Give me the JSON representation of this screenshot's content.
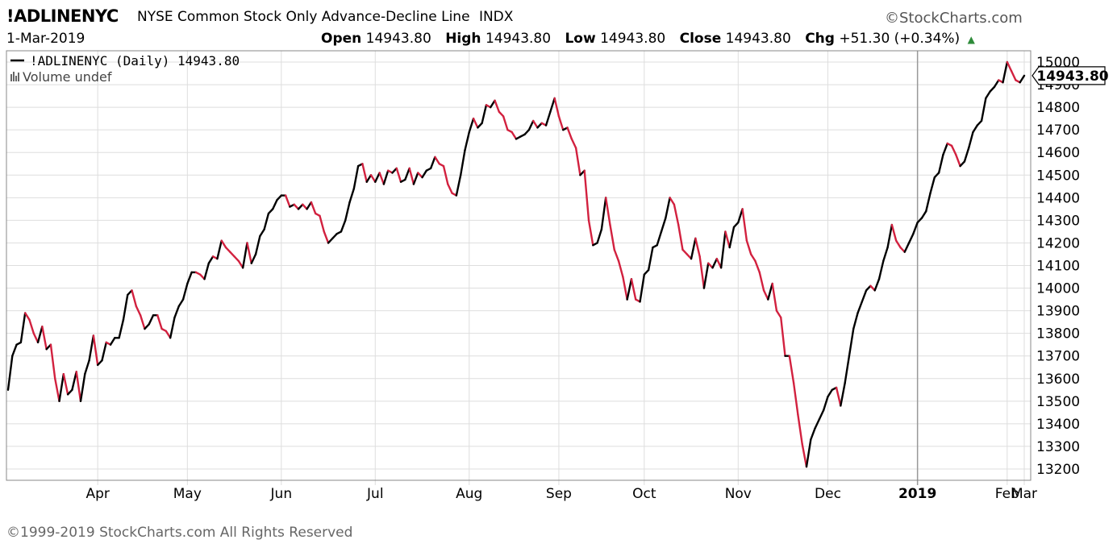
{
  "header": {
    "symbol": "!ADLINENYC",
    "description": "NYSE Common Stock Only Advance-Decline Line",
    "exchange": "INDX",
    "date": "1-Mar-2019",
    "brand": "©StockCharts.com",
    "open_label": "Open",
    "open": "14943.80",
    "high_label": "High",
    "high": "14943.80",
    "low_label": "Low",
    "low": "14943.80",
    "close_label": "Close",
    "close": "14943.80",
    "chg_label": "Chg",
    "chg": "+51.30 (+0.34%)"
  },
  "legend": {
    "series": "!ADLINENYC (Daily) 14943.80",
    "volume": "Volume undef"
  },
  "footer": {
    "copyright": "©1999-2019 StockCharts.com All Rights Reserved"
  },
  "colors": {
    "up": "#000000",
    "down": "#d2213f",
    "grid": "#dedede",
    "axis": "#888888"
  },
  "chart_data": {
    "type": "line",
    "title": "!ADLINENYC NYSE Common Stock Only Advance-Decline Line INDX",
    "ylim": [
      13150,
      15050
    ],
    "yticks": [
      13200,
      13300,
      13400,
      13500,
      13600,
      13700,
      13800,
      13900,
      14000,
      14100,
      14200,
      14300,
      14400,
      14500,
      14600,
      14700,
      14800,
      14900,
      15000
    ],
    "x_labels": [
      "Apr",
      "May",
      "Jun",
      "Jul",
      "Aug",
      "Sep",
      "Oct",
      "Nov",
      "Dec",
      "2019",
      "Feb",
      "Mar"
    ],
    "last_value_label": "14943.80",
    "series": [
      {
        "values": [
          13550,
          13700,
          13750,
          13760,
          13890,
          13860,
          13800,
          13760,
          13830,
          13730,
          13750,
          13600,
          13500,
          13620,
          13530,
          13550,
          13630,
          13500,
          13620,
          13680,
          13790,
          13660,
          13680,
          13760,
          13750,
          13780,
          13780,
          13860,
          13970,
          13990,
          13920,
          13880,
          13820,
          13840,
          13880,
          13880,
          13820,
          13810,
          13780,
          13870,
          13920,
          13950,
          14020,
          14070,
          14070,
          14060,
          14040,
          14110,
          14140,
          14130,
          14210,
          14180,
          14160,
          14140,
          14120,
          14090,
          14200,
          14110,
          14150,
          14230,
          14260,
          14330,
          14350,
          14390,
          14410,
          14410,
          14360,
          14370,
          14350,
          14370,
          14350,
          14380,
          14330,
          14320,
          14250,
          14200,
          14220,
          14240,
          14250,
          14300,
          14380,
          14440,
          14540,
          14550,
          14470,
          14500,
          14470,
          14510,
          14460,
          14520,
          14510,
          14530,
          14470,
          14480,
          14530,
          14460,
          14510,
          14490,
          14520,
          14530,
          14580,
          14550,
          14540,
          14460,
          14420,
          14410,
          14500,
          14610,
          14690,
          14750,
          14710,
          14730,
          14810,
          14800,
          14830,
          14780,
          14760,
          14700,
          14690,
          14660,
          14670,
          14680,
          14700,
          14740,
          14710,
          14730,
          14720,
          14780,
          14840,
          14760,
          14700,
          14710,
          14660,
          14620,
          14500,
          14520,
          14300,
          14190,
          14200,
          14260,
          14400,
          14280,
          14170,
          14120,
          14050,
          13950,
          14040,
          13950,
          13940,
          14060,
          14080,
          14180,
          14190,
          14250,
          14310,
          14400,
          14370,
          14280,
          14170,
          14150,
          14130,
          14220,
          14140,
          14000,
          14110,
          14090,
          14130,
          14090,
          14250,
          14180,
          14270,
          14290,
          14350,
          14210,
          14150,
          14120,
          14070,
          13990,
          13950,
          14020,
          13900,
          13870,
          13700,
          13700,
          13580,
          13440,
          13310,
          13210,
          13330,
          13380,
          13420,
          13460,
          13520,
          13550,
          13560,
          13480,
          13580,
          13700,
          13820,
          13890,
          13940,
          13990,
          14010,
          13990,
          14040,
          14120,
          14180,
          14280,
          14210,
          14180,
          14160,
          14200,
          14240,
          14290,
          14310,
          14340,
          14420,
          14490,
          14510,
          14590,
          14640,
          14630,
          14590,
          14540,
          14560,
          14620,
          14690,
          14720,
          14740,
          14840,
          14870,
          14890,
          14920,
          14910,
          15000,
          14960,
          14920,
          14910,
          14940
        ]
      }
    ]
  }
}
